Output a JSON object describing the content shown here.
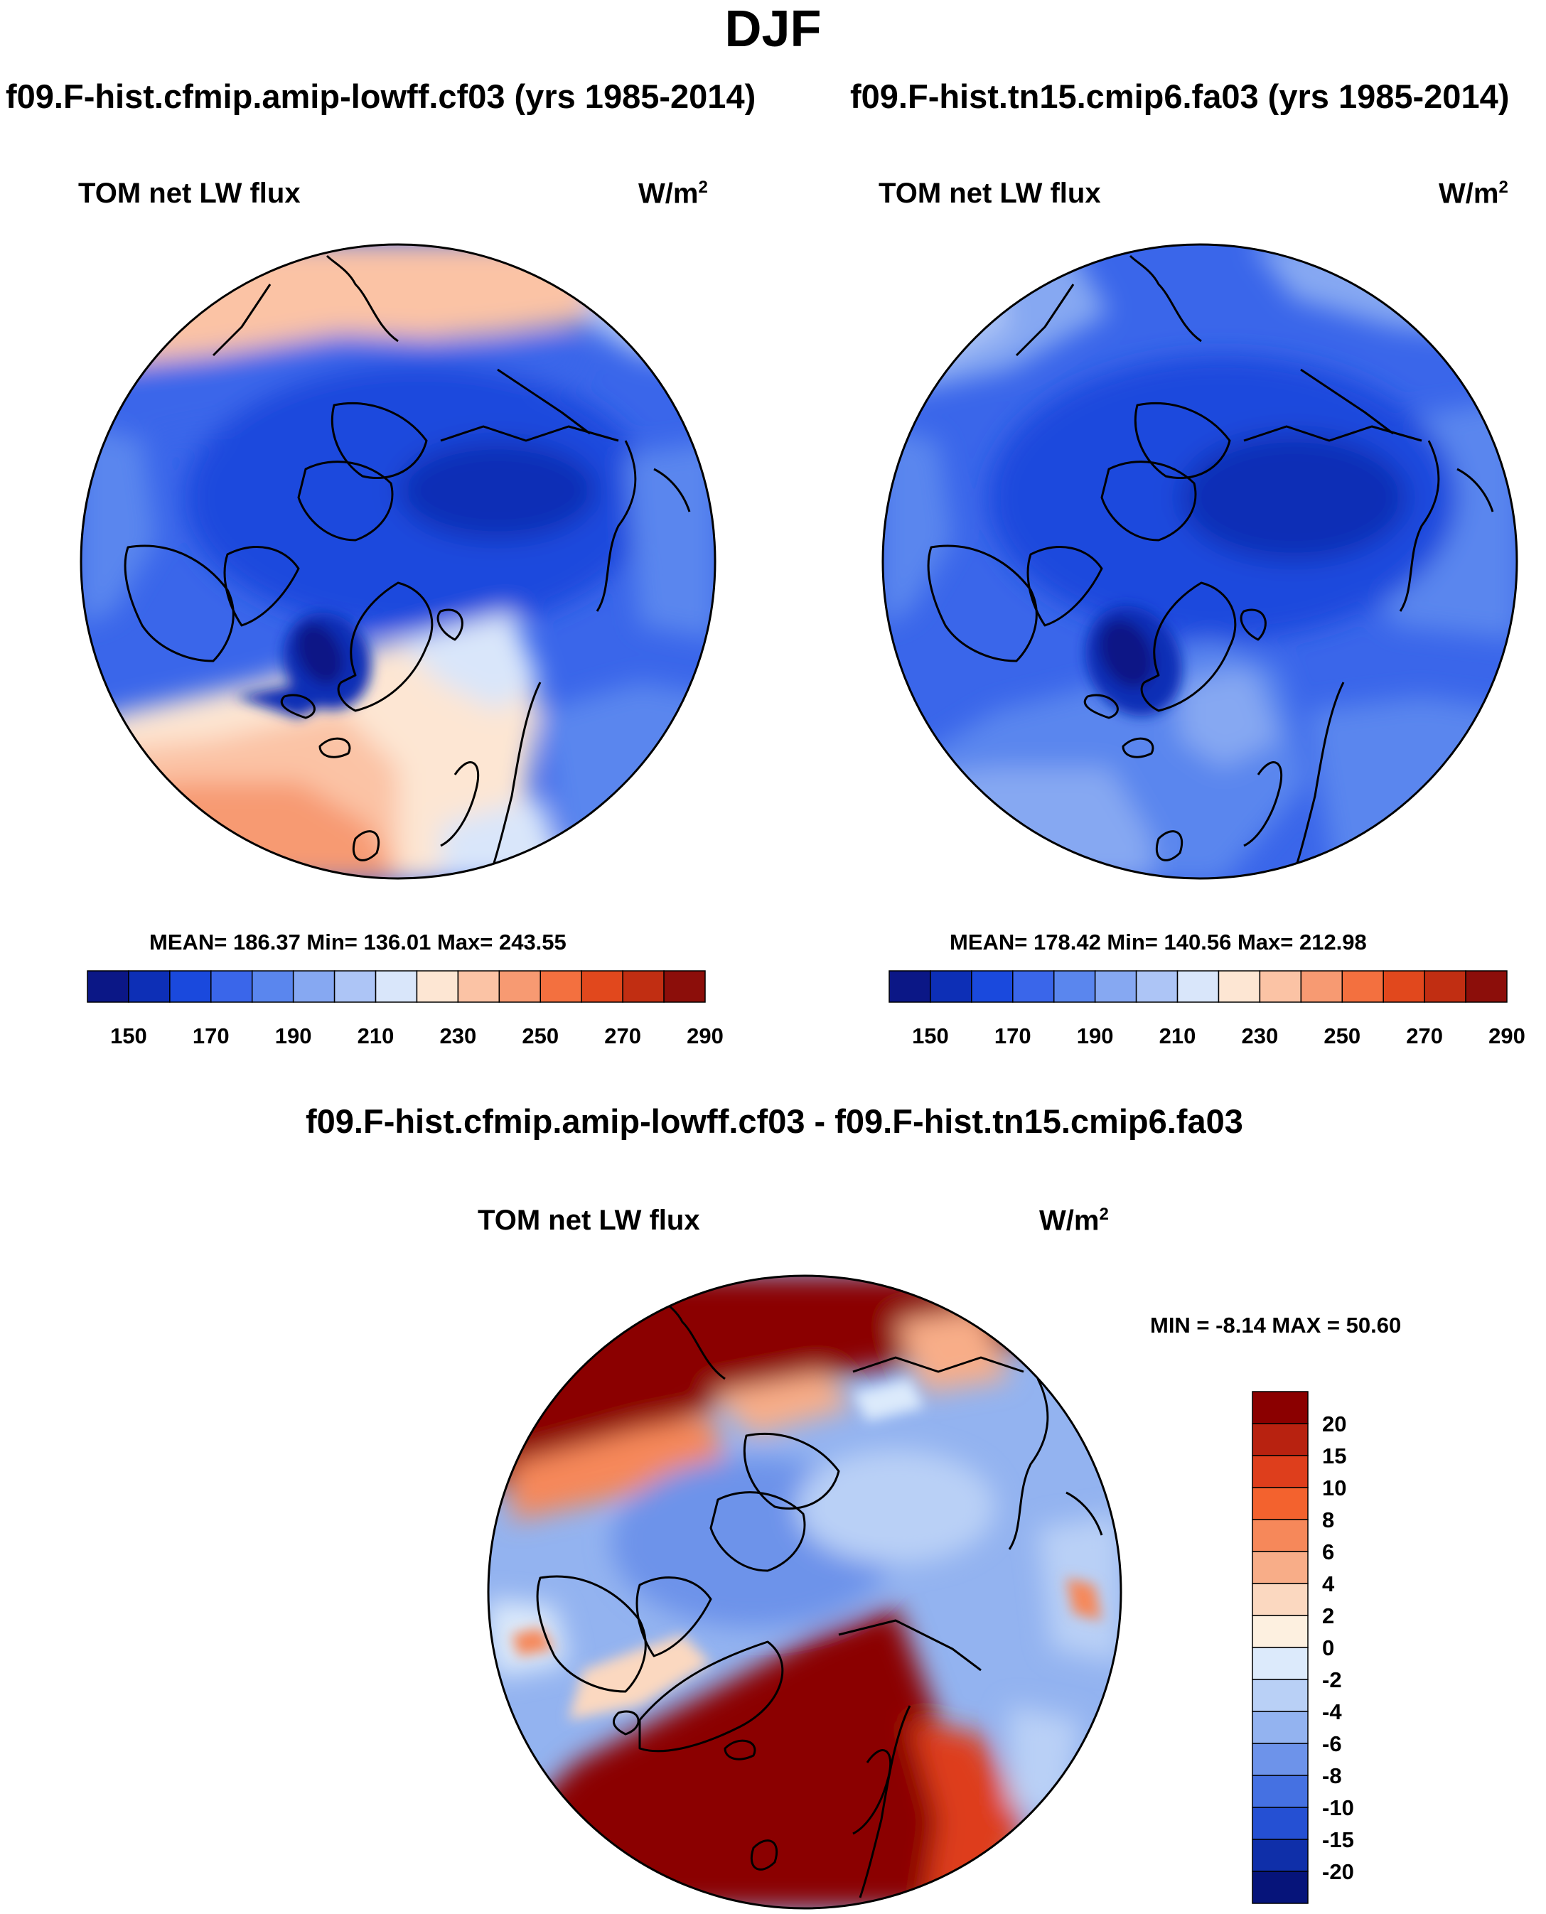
{
  "season": "DJF",
  "panels": [
    {
      "case": "f09.F-hist.cfmip.amip-lowff.cf03 (yrs 1985-2014)",
      "variable": "TOM net LW flux",
      "units": "W/m",
      "units_sup": "2",
      "stats": "MEAN= 186.37  Min= 136.01  Max= 243.55",
      "colorbar_labels": [
        "150",
        "170",
        "190",
        "210",
        "230",
        "250",
        "270",
        "290"
      ]
    },
    {
      "case": "f09.F-hist.tn15.cmip6.fa03 (yrs 1985-2014)",
      "variable": "TOM net LW flux",
      "units": "W/m",
      "units_sup": "2",
      "stats": "MEAN= 178.42  Min= 140.56  Max= 212.98",
      "colorbar_labels": [
        "150",
        "170",
        "190",
        "210",
        "230",
        "250",
        "270",
        "290"
      ]
    }
  ],
  "difference": {
    "title": "f09.F-hist.cfmip.amip-lowff.cf03 - f09.F-hist.tn15.cmip6.fa03",
    "variable": "TOM net LW flux",
    "units": "W/m",
    "units_sup": "2",
    "stats": "MIN =  -8.14 MAX =  50.60",
    "colorbar_labels": [
      "20",
      "15",
      "10",
      "8",
      "6",
      "4",
      "2",
      "0",
      "-2",
      "-4",
      "-6",
      "-8",
      "-10",
      "-15",
      "-20"
    ]
  },
  "colors": {
    "abs_scale": [
      "#0b1786",
      "#0d2fb6",
      "#1a49dd",
      "#3a66ea",
      "#5a86ee",
      "#86a8f2",
      "#adc5f6",
      "#d9e6fa",
      "#fde6d3",
      "#fbc3a5",
      "#f79a72",
      "#f3703f",
      "#e1481d",
      "#c12e12",
      "#8c0e0a"
    ],
    "diff_scale": [
      "#8b0000",
      "#b82210",
      "#de3e1c",
      "#f3622e",
      "#f6885a",
      "#f8ad88",
      "#fbd8c0",
      "#fdf0e0",
      "#dceafb",
      "#b9d0f6",
      "#93b3f0",
      "#6d93ea",
      "#4571e2",
      "#2550d3",
      "#0f2fa9",
      "#06147a"
    ]
  },
  "chart_data": [
    {
      "type": "heatmap",
      "title": "TOM net LW flux",
      "subtitle": "f09.F-hist.cfmip.amip-lowff.cf03 (yrs 1985-2014)",
      "projection": "north polar stereographic",
      "levels": [
        140,
        150,
        160,
        170,
        180,
        190,
        200,
        210,
        220,
        230,
        240,
        250,
        260,
        270,
        280,
        290
      ],
      "mean": 186.37,
      "min": 136.01,
      "max": 243.55
    },
    {
      "type": "heatmap",
      "title": "TOM net LW flux",
      "subtitle": "f09.F-hist.tn15.cmip6.fa03 (yrs 1985-2014)",
      "projection": "north polar stereographic",
      "levels": [
        140,
        150,
        160,
        170,
        180,
        190,
        200,
        210,
        220,
        230,
        240,
        250,
        260,
        270,
        280,
        290
      ],
      "mean": 178.42,
      "min": 140.56,
      "max": 212.98
    },
    {
      "type": "heatmap",
      "title": "TOM net LW flux",
      "subtitle": "f09.F-hist.cfmip.amip-lowff.cf03 - f09.F-hist.tn15.cmip6.fa03",
      "projection": "north polar stereographic",
      "levels": [
        -20,
        -15,
        -10,
        -8,
        -6,
        -4,
        -2,
        0,
        2,
        4,
        6,
        8,
        10,
        15,
        20
      ],
      "min": -8.14,
      "max": 50.6
    }
  ]
}
